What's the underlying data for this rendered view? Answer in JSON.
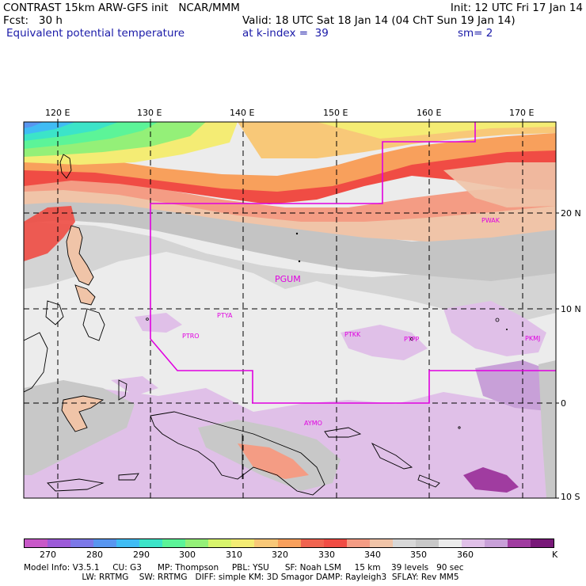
{
  "header": {
    "line1_left": "CONTRAST 15km ARW-GFS init   NCAR/MMM",
    "line1_right": "Init: 12 UTC Fri 17 Jan 14",
    "fcst": "Fcst:   30 h",
    "valid": "Valid: 18 UTC Sat 18 Jan 14 (04 ChT Sun 19 Jan 14)",
    "field": "Equivalent potential temperature",
    "kindex": "at k-index =  39",
    "smooth": "sm= 2"
  },
  "map": {
    "lon_labels": [
      "120 E",
      "130 E",
      "140 E",
      "150 E",
      "160 E",
      "170 E"
    ],
    "lat_labels": [
      "20 N",
      "10 N",
      "0",
      "10 S"
    ],
    "stations": [
      "PWAK",
      "PGUM",
      "PTYA",
      "PTRO",
      "PTKK",
      "PTPP",
      "PKMJ",
      "AYMO"
    ]
  },
  "colorbar": {
    "colors": [
      "#c858c8",
      "#9c5ad8",
      "#7c78e8",
      "#5896f0",
      "#40bcf4",
      "#3ce4c8",
      "#5cf498",
      "#94f078",
      "#d8f46c",
      "#f4ec74",
      "#f8c878",
      "#f8a05c",
      "#f06450",
      "#f04c44",
      "#f49c84",
      "#f0c4a8",
      "#d8d8d8",
      "#c8c8c8",
      "#ececec",
      "#e0c0e8",
      "#c8a0d8",
      "#a03ca0",
      "#781878"
    ],
    "labels": [
      "270",
      "280",
      "290",
      "300",
      "310",
      "320",
      "330",
      "340",
      "350",
      "360",
      "K"
    ]
  },
  "footer": {
    "line1": "Model Info: V3.5.1     CU: G3      MP: Thompson     PBL: YSU      SF: Noah LSM     15 km    39 levels   90 sec",
    "line2": "                      LW: RRTMG    SW: RRTMG   DIFF: simple KM: 3D Smagor DAMP: Rayleigh3  SFLAY: Rev MM5"
  }
}
